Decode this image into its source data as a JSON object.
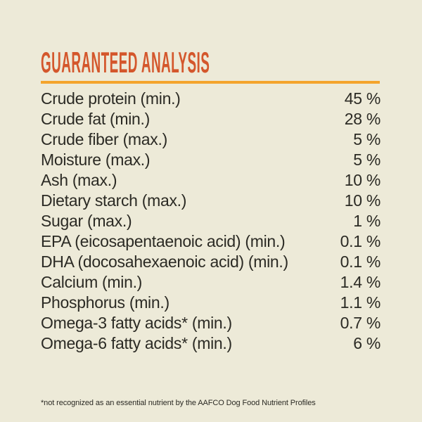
{
  "page": {
    "background_color": "#edead8",
    "accent_title_color": "#d4572c",
    "accent_rule_color": "#f4a42c",
    "text_color": "#2b2a24"
  },
  "header": {
    "title": "GUARANTEED ANALYSIS"
  },
  "analysis": {
    "rows": [
      {
        "label": "Crude protein (min.)",
        "value": "45 %"
      },
      {
        "label": "Crude fat (min.)",
        "value": "28 %"
      },
      {
        "label": "Crude fiber (max.)",
        "value": "5 %"
      },
      {
        "label": "Moisture (max.)",
        "value": "5 %"
      },
      {
        "label": "Ash (max.)",
        "value": "10 %"
      },
      {
        "label": "Dietary starch (max.)",
        "value": "10 %"
      },
      {
        "label": "Sugar (max.)",
        "value": "1 %"
      },
      {
        "label": "EPA (eicosapentaenoic acid) (min.)",
        "value": "0.1 %"
      },
      {
        "label": "DHA (docosahexaenoic acid) (min.)",
        "value": "0.1 %"
      },
      {
        "label": "Calcium (min.)",
        "value": "1.4 %"
      },
      {
        "label": "Phosphorus (min.)",
        "value": "1.1 %"
      },
      {
        "label": "Omega-3 fatty acids* (min.)",
        "value": "0.7 %"
      },
      {
        "label": "Omega-6 fatty acids* (min.)",
        "value": "6 %"
      }
    ]
  },
  "footnote": {
    "text": "*not recognized as an essential nutrient by the AAFCO Dog Food Nutrient Profiles"
  }
}
